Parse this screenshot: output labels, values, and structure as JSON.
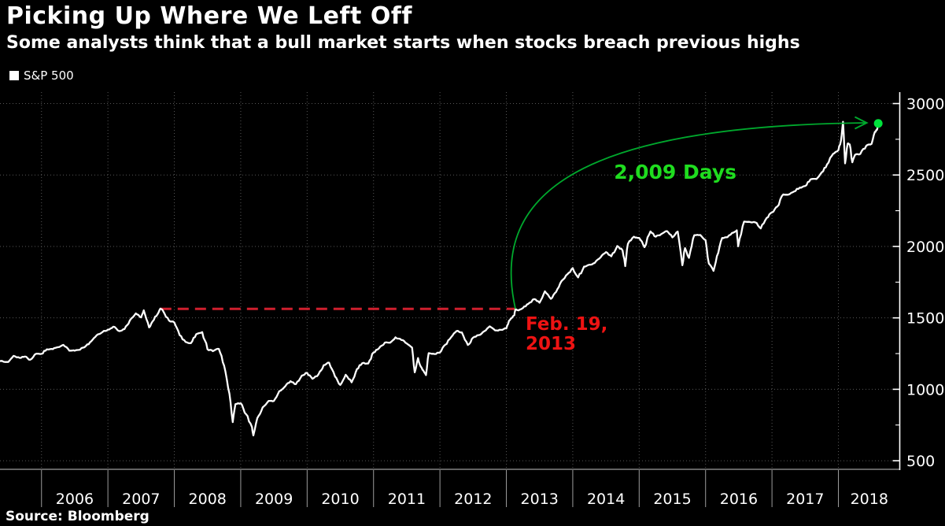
{
  "header": {
    "title": "Picking Up Where We Left Off",
    "subtitle": "Some analysts think that a bull market starts when stocks breach previous highs"
  },
  "legend": {
    "label": "S&P 500",
    "swatch_color": "#ffffff"
  },
  "footer": {
    "source": "Source: Bloomberg"
  },
  "colors": {
    "background": "#000000",
    "series": "#ffffff",
    "grid": "#575757",
    "y_axis": "#ffffff",
    "x_axis": "#9c9c9c",
    "tick_label": "#ffffff",
    "dashed_red": "#cf1f2e",
    "red_text": "#ee1313",
    "green_line": "#00a82d",
    "green_dot": "#00e33c",
    "green_text": "#1fdd1f"
  },
  "chart_data": {
    "type": "line",
    "title": "Picking Up Where We Left Off",
    "xlabel": "",
    "ylabel": "",
    "legend_position": "top-left",
    "grid": "dotted",
    "x_axis": {
      "range": [
        2005.375,
        2018.93
      ],
      "tick_years": [
        2006,
        2007,
        2008,
        2009,
        2010,
        2011,
        2012,
        2013,
        2014,
        2015,
        2016,
        2017,
        2018
      ],
      "labels": [
        "2006",
        "2007",
        "2008",
        "2009",
        "2010",
        "2011",
        "2012",
        "2013",
        "2014",
        "2015",
        "2016",
        "2017",
        "2018"
      ]
    },
    "y_axis": {
      "side": "right",
      "range": [
        440,
        3080
      ],
      "ticks": [
        500,
        1000,
        1500,
        2000,
        2500,
        3000
      ],
      "labels": [
        "500",
        "1000",
        "1500",
        "2000",
        "2500",
        "3000"
      ],
      "minor_tick_step": 250
    },
    "series": [
      {
        "name": "S&P 500",
        "color": "#ffffff",
        "points": [
          [
            2005.38,
            1198
          ],
          [
            2005.5,
            1191
          ],
          [
            2005.58,
            1234
          ],
          [
            2005.67,
            1220
          ],
          [
            2005.75,
            1229
          ],
          [
            2005.83,
            1207
          ],
          [
            2005.92,
            1249
          ],
          [
            2006.0,
            1248
          ],
          [
            2006.08,
            1280
          ],
          [
            2006.17,
            1281
          ],
          [
            2006.25,
            1295
          ],
          [
            2006.33,
            1311
          ],
          [
            2006.42,
            1270
          ],
          [
            2006.5,
            1270
          ],
          [
            2006.58,
            1277
          ],
          [
            2006.67,
            1304
          ],
          [
            2006.75,
            1336
          ],
          [
            2006.83,
            1378
          ],
          [
            2006.92,
            1401
          ],
          [
            2007.0,
            1418
          ],
          [
            2007.08,
            1438
          ],
          [
            2007.17,
            1407
          ],
          [
            2007.25,
            1421
          ],
          [
            2007.33,
            1482
          ],
          [
            2007.42,
            1531
          ],
          [
            2007.5,
            1503
          ],
          [
            2007.54,
            1553
          ],
          [
            2007.62,
            1433
          ],
          [
            2007.67,
            1474
          ],
          [
            2007.75,
            1527
          ],
          [
            2007.79,
            1565
          ],
          [
            2007.83,
            1549
          ],
          [
            2007.92,
            1481
          ],
          [
            2008.0,
            1468
          ],
          [
            2008.08,
            1379
          ],
          [
            2008.17,
            1331
          ],
          [
            2008.25,
            1323
          ],
          [
            2008.33,
            1386
          ],
          [
            2008.42,
            1400
          ],
          [
            2008.5,
            1280
          ],
          [
            2008.58,
            1267
          ],
          [
            2008.67,
            1283
          ],
          [
            2008.75,
            1166
          ],
          [
            2008.83,
            969
          ],
          [
            2008.88,
            770
          ],
          [
            2008.92,
            896
          ],
          [
            2009.0,
            903
          ],
          [
            2009.08,
            826
          ],
          [
            2009.17,
            735
          ],
          [
            2009.19,
            677
          ],
          [
            2009.25,
            798
          ],
          [
            2009.33,
            873
          ],
          [
            2009.42,
            919
          ],
          [
            2009.5,
            919
          ],
          [
            2009.58,
            987
          ],
          [
            2009.67,
            1021
          ],
          [
            2009.75,
            1057
          ],
          [
            2009.83,
            1036
          ],
          [
            2009.92,
            1096
          ],
          [
            2010.0,
            1115
          ],
          [
            2010.08,
            1074
          ],
          [
            2010.17,
            1104
          ],
          [
            2010.25,
            1169
          ],
          [
            2010.33,
            1187
          ],
          [
            2010.42,
            1089
          ],
          [
            2010.5,
            1031
          ],
          [
            2010.58,
            1102
          ],
          [
            2010.67,
            1049
          ],
          [
            2010.75,
            1141
          ],
          [
            2010.83,
            1183
          ],
          [
            2010.92,
            1181
          ],
          [
            2011.0,
            1258
          ],
          [
            2011.08,
            1286
          ],
          [
            2011.17,
            1327
          ],
          [
            2011.25,
            1326
          ],
          [
            2011.33,
            1364
          ],
          [
            2011.42,
            1345
          ],
          [
            2011.5,
            1321
          ],
          [
            2011.58,
            1292
          ],
          [
            2011.62,
            1119
          ],
          [
            2011.67,
            1219
          ],
          [
            2011.71,
            1159
          ],
          [
            2011.75,
            1131
          ],
          [
            2011.79,
            1099
          ],
          [
            2011.83,
            1253
          ],
          [
            2011.92,
            1247
          ],
          [
            2012.0,
            1258
          ],
          [
            2012.08,
            1312
          ],
          [
            2012.17,
            1366
          ],
          [
            2012.25,
            1408
          ],
          [
            2012.33,
            1398
          ],
          [
            2012.42,
            1310
          ],
          [
            2012.5,
            1362
          ],
          [
            2012.58,
            1379
          ],
          [
            2012.67,
            1407
          ],
          [
            2012.75,
            1441
          ],
          [
            2012.83,
            1412
          ],
          [
            2012.92,
            1416
          ],
          [
            2013.0,
            1426
          ],
          [
            2013.04,
            1480
          ],
          [
            2013.08,
            1498
          ],
          [
            2013.12,
            1519
          ],
          [
            2013.137,
            1563
          ],
          [
            2013.18,
            1552
          ],
          [
            2013.25,
            1569
          ],
          [
            2013.33,
            1598
          ],
          [
            2013.42,
            1631
          ],
          [
            2013.5,
            1606
          ],
          [
            2013.58,
            1686
          ],
          [
            2013.67,
            1633
          ],
          [
            2013.75,
            1682
          ],
          [
            2013.83,
            1757
          ],
          [
            2013.92,
            1806
          ],
          [
            2014.0,
            1848
          ],
          [
            2014.08,
            1783
          ],
          [
            2014.17,
            1859
          ],
          [
            2014.25,
            1872
          ],
          [
            2014.33,
            1884
          ],
          [
            2014.42,
            1924
          ],
          [
            2014.5,
            1960
          ],
          [
            2014.58,
            1931
          ],
          [
            2014.67,
            2003
          ],
          [
            2014.75,
            1972
          ],
          [
            2014.79,
            1862
          ],
          [
            2014.83,
            2018
          ],
          [
            2014.92,
            2068
          ],
          [
            2015.0,
            2059
          ],
          [
            2015.08,
            1995
          ],
          [
            2015.17,
            2105
          ],
          [
            2015.25,
            2068
          ],
          [
            2015.33,
            2086
          ],
          [
            2015.42,
            2107
          ],
          [
            2015.5,
            2063
          ],
          [
            2015.58,
            2104
          ],
          [
            2015.65,
            1868
          ],
          [
            2015.69,
            1988
          ],
          [
            2015.75,
            1920
          ],
          [
            2015.83,
            2079
          ],
          [
            2015.92,
            2080
          ],
          [
            2016.0,
            2044
          ],
          [
            2016.05,
            1880
          ],
          [
            2016.12,
            1829
          ],
          [
            2016.17,
            1932
          ],
          [
            2016.25,
            2060
          ],
          [
            2016.33,
            2065
          ],
          [
            2016.42,
            2097
          ],
          [
            2016.47,
            2113
          ],
          [
            2016.49,
            2001
          ],
          [
            2016.58,
            2174
          ],
          [
            2016.67,
            2171
          ],
          [
            2016.75,
            2168
          ],
          [
            2016.83,
            2126
          ],
          [
            2016.92,
            2199
          ],
          [
            2017.0,
            2239
          ],
          [
            2017.08,
            2279
          ],
          [
            2017.17,
            2364
          ],
          [
            2017.25,
            2363
          ],
          [
            2017.33,
            2384
          ],
          [
            2017.42,
            2412
          ],
          [
            2017.5,
            2423
          ],
          [
            2017.58,
            2470
          ],
          [
            2017.67,
            2472
          ],
          [
            2017.75,
            2519
          ],
          [
            2017.83,
            2575
          ],
          [
            2017.92,
            2648
          ],
          [
            2018.0,
            2674
          ],
          [
            2018.04,
            2743
          ],
          [
            2018.07,
            2873
          ],
          [
            2018.1,
            2581
          ],
          [
            2018.14,
            2720
          ],
          [
            2018.17,
            2714
          ],
          [
            2018.21,
            2589
          ],
          [
            2018.25,
            2641
          ],
          [
            2018.33,
            2648
          ],
          [
            2018.42,
            2705
          ],
          [
            2018.5,
            2718
          ],
          [
            2018.55,
            2802
          ],
          [
            2018.58,
            2816
          ],
          [
            2018.62,
            2870
          ]
        ]
      }
    ],
    "annotations": {
      "prior_high_line": {
        "value": 1563,
        "from_year": 2007.79,
        "to_year": 2013.137
      },
      "breakout_label": {
        "lines": [
          "Feb. 19,",
          "2013"
        ],
        "anchor": [
          2013.29,
          1523
        ]
      },
      "duration_label": {
        "text": "2,009 Days",
        "anchor": [
          2014.62,
          2592
        ]
      },
      "duration_arc": {
        "from": [
          2013.137,
          1563
        ],
        "to": [
          2018.42,
          2865
        ]
      },
      "end_dot": {
        "year": 2018.6,
        "value": 2861
      }
    }
  }
}
